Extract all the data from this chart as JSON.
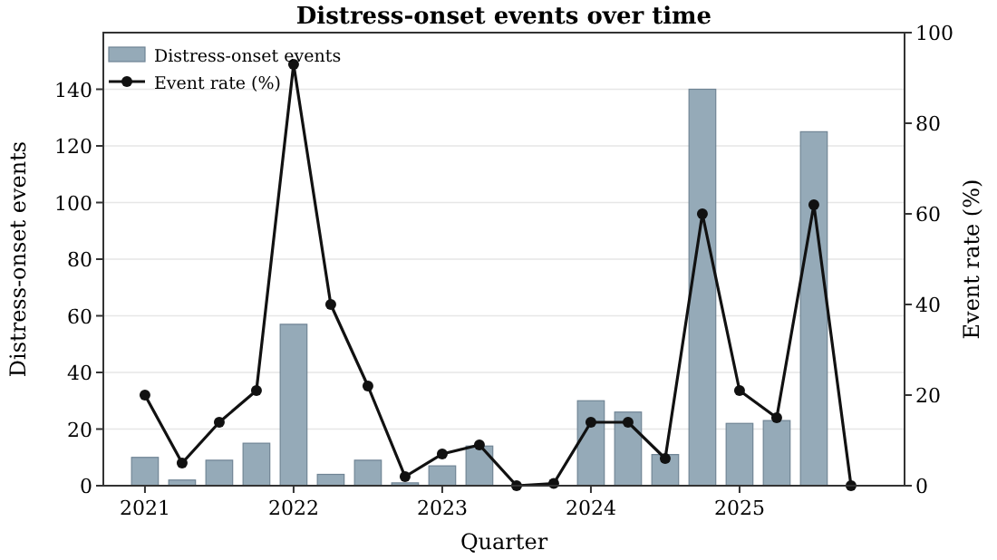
{
  "chart_data": {
    "type": "bar",
    "title": "Distress-onset events over time",
    "xlabel": "Quarter",
    "ylabel": "Distress-onset events",
    "y2label": "Event rate (%)",
    "x": [
      2021,
      2021.25,
      2021.5,
      2021.75,
      2022,
      2022.25,
      2022.5,
      2022.75,
      2023,
      2023.25,
      2023.5,
      2023.75,
      2024,
      2024.25,
      2024.5,
      2024.75,
      2025,
      2025.25,
      2025.5,
      2025.75
    ],
    "series": [
      {
        "name": "Distress-onset events",
        "color": "#95aab8",
        "values": [
          10,
          2,
          9,
          15,
          57,
          4,
          9,
          1,
          7,
          14,
          0,
          0,
          30,
          26,
          11,
          140,
          22,
          23,
          125,
          0
        ]
      },
      {
        "name": "Event rate (%)",
        "type": "line",
        "axis": "y2",
        "color": "#111111",
        "marker": "circle",
        "line_style": "solid",
        "values": [
          20,
          5,
          14,
          21,
          93,
          40,
          22,
          2,
          7,
          9,
          0,
          0.5,
          14,
          14,
          6,
          60,
          21,
          15,
          62,
          0
        ]
      }
    ],
    "xlim": [
      2020.72,
      2026.11
    ],
    "xticks": [
      2021,
      2022,
      2023,
      2024,
      2025
    ],
    "ylim": [
      0,
      160
    ],
    "yticks": [
      0,
      20,
      40,
      60,
      80,
      100,
      120,
      140
    ],
    "y2lim": [
      0,
      100
    ],
    "y2ticks": [
      0,
      20,
      40,
      60,
      80,
      100
    ],
    "grid": "y",
    "legend": "top left"
  }
}
